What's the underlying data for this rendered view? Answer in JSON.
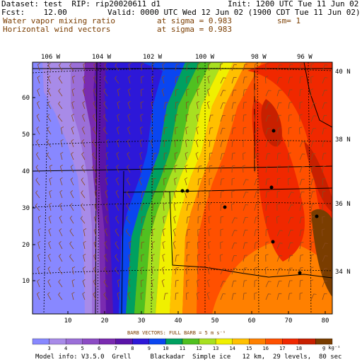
{
  "header": {
    "dataset": "Dataset: test  RIP: rip20020611 d1",
    "init": "Init: 1200 UTC Tue 11 Jun 02",
    "fcst": "Fcst:    12.00",
    "valid": "Valid: 0000 UTC Wed 12 Jun 02 (1900 CDT Tue 11 Jun 02)",
    "field1_name": "Water vapor mixing ratio",
    "field1_level": "at sigma = 0.983",
    "field1_smooth": "sm= 1",
    "field2_name": "Horizontal wind vectors",
    "field2_level": "at sigma = 0.983"
  },
  "map": {
    "lon_labels": [
      "106 W",
      "104 W",
      "102 W",
      "100 W",
      "98 W",
      "96 W"
    ],
    "lat_labels": [
      "40 N",
      "38 N",
      "36 N",
      "34 N"
    ],
    "grid_x_labels": [
      "10",
      "20",
      "30",
      "40",
      "50",
      "60",
      "70",
      "80"
    ],
    "grid_y_labels": [
      "10",
      "20",
      "30",
      "40",
      "50",
      "60"
    ]
  },
  "barb_note": "BARB VECTORS:  FULL BARB = 5 m s⁻¹",
  "colorbar": {
    "labels": [
      "3",
      "4",
      "5",
      "6",
      "7",
      "8",
      "9",
      "10",
      "11",
      "12",
      "13",
      "14",
      "15",
      "16",
      "17",
      "18"
    ],
    "unit": "g kg⁻¹",
    "colors": [
      "#8888ff",
      "#a88be8",
      "#9b6fd8",
      "#8c4cc4",
      "#7a2bb0",
      "#5a14a8",
      "#2d18d8",
      "#0a46f0",
      "#00a060",
      "#50c020",
      "#a8e020",
      "#f0f000",
      "#ffc000",
      "#ff8000",
      "#ff5000",
      "#f02800",
      "#c82000",
      "#7a3d00"
    ]
  },
  "footer": "Model info: V3.5.0  Grell     Blackadar  Simple ice   12 km,  29 levels,  80 sec"
}
